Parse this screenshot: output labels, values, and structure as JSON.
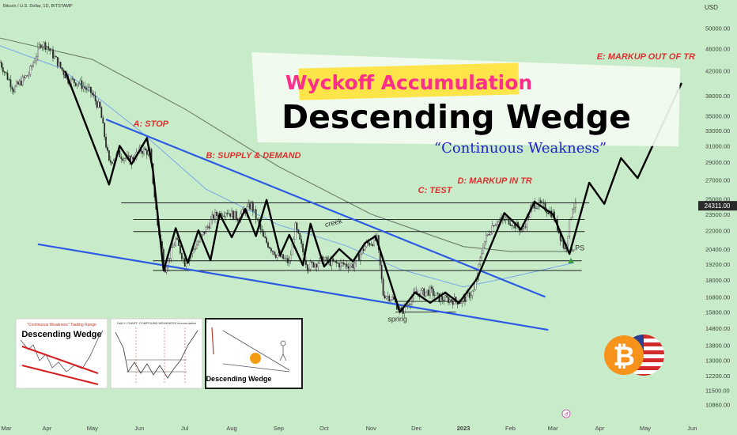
{
  "header": {
    "symbol_line": "Bitcoin / U.S. Dollar, 1D, BITSTAMP",
    "currency": "USD"
  },
  "colors": {
    "background": "#c8ecc9",
    "candle": "#2a2a2a",
    "zigzag": "#000000",
    "trendline": "#2d5be3",
    "ma_slow": "#6d7d6d",
    "ma_fast": "#7aa7e6",
    "phase_label": "#e03030",
    "price_badge": "#2b2b2b",
    "highlight_pink": "#ff2e8a",
    "highlight_yellow": "#ffe44a",
    "subtitle_blue": "#2222cc",
    "lps_marker": "#3aa048",
    "bitcoin": "#f7931a"
  },
  "titles": {
    "highlight": "Wyckoff Accumulation",
    "main": "Descending Wedge",
    "subtitle": "“Continuous Weakness”"
  },
  "annotations": [
    {
      "name": "label-a-stop",
      "text": "A: STOP",
      "x": "2022-05-28",
      "y": 33500,
      "style": "phase"
    },
    {
      "name": "label-b-supply-demand",
      "text": "B: SUPPLY & DEMAND",
      "x": "2022-07-15",
      "y": 29500,
      "style": "phase"
    },
    {
      "name": "label-c-test",
      "text": "C: TEST",
      "x": "2022-12-02",
      "y": 25600,
      "style": "phase"
    },
    {
      "name": "label-d-markup-in-tr",
      "text": "D: MARKUP IN TR",
      "x": "2022-12-28",
      "y": 26600,
      "style": "phase"
    },
    {
      "name": "label-e-markup-out-of-tr",
      "text": "E: MARKUP OUT OF TR",
      "x": "2023-03-30",
      "y": 44000,
      "style": "phase"
    },
    {
      "name": "label-creek",
      "text": "creek",
      "x": "2022-10-02",
      "y": 22300,
      "style": "note"
    },
    {
      "name": "label-spring",
      "text": "spring",
      "x": "2022-11-12",
      "y": 15200,
      "style": "note"
    },
    {
      "name": "label-lps",
      "text": "LPS",
      "x": "2023-03-13",
      "y": 20300,
      "style": "note"
    }
  ],
  "badges": {
    "last_price": "24311.00"
  },
  "thumbnails": [
    {
      "name": "thumbnail-continuous-weakness",
      "caption": "\"Continuous Weakness\" Trading Range",
      "title": "Descending Wedge"
    },
    {
      "name": "thumbnail-wyckoff-schematic",
      "caption": "DAILY CHART: COMPOUND WEAKNESS Accumulation",
      "title": ""
    },
    {
      "name": "thumbnail-wedge-illustration",
      "caption": "",
      "title": "Descending Wedge"
    }
  ],
  "chart_data": {
    "type": "line",
    "title": "Bitcoin / U.S. Dollar, 1D, BITSTAMP",
    "xlabel": "",
    "ylabel": "USD",
    "yscale": "log",
    "xlim": [
      "2022-03-01",
      "2023-06-05"
    ],
    "ylim": [
      10200,
      56000
    ],
    "grid": false,
    "x_ticks": [
      {
        "date": "2022-03-01",
        "label": "Mar"
      },
      {
        "date": "2022-04-01",
        "label": "Apr"
      },
      {
        "date": "2022-05-01",
        "label": "May"
      },
      {
        "date": "2022-06-01",
        "label": "Jun"
      },
      {
        "date": "2022-07-01",
        "label": "Jul"
      },
      {
        "date": "2022-08-01",
        "label": "Aug"
      },
      {
        "date": "2022-09-01",
        "label": "Sep"
      },
      {
        "date": "2022-10-01",
        "label": "Oct"
      },
      {
        "date": "2022-11-01",
        "label": "Nov"
      },
      {
        "date": "2022-12-01",
        "label": "Dec"
      },
      {
        "date": "2023-01-01",
        "label": "2023"
      },
      {
        "date": "2023-02-01",
        "label": "Feb"
      },
      {
        "date": "2023-03-01",
        "label": "Mar"
      },
      {
        "date": "2023-04-01",
        "label": "Apr"
      },
      {
        "date": "2023-05-01",
        "label": "May"
      },
      {
        "date": "2023-06-01",
        "label": "Jun"
      }
    ],
    "y_ticks": [
      {
        "value": 50000,
        "label": "50000.00"
      },
      {
        "value": 46000,
        "label": "46000.00"
      },
      {
        "value": 42000,
        "label": "42000.00"
      },
      {
        "value": 38000,
        "label": "38000.00"
      },
      {
        "value": 35000,
        "label": "35000.00"
      },
      {
        "value": 33000,
        "label": "33000.00"
      },
      {
        "value": 31000,
        "label": "31000.00"
      },
      {
        "value": 29000,
        "label": "29000.00"
      },
      {
        "value": 27000,
        "label": "27000.00"
      },
      {
        "value": 25000,
        "label": "25000.00"
      },
      {
        "value": 23500,
        "label": "23500.00"
      },
      {
        "value": 22000,
        "label": "22000.00"
      },
      {
        "value": 20400,
        "label": "20400.00"
      },
      {
        "value": 19200,
        "label": "19200.00"
      },
      {
        "value": 18000,
        "label": "18000.00"
      },
      {
        "value": 16800,
        "label": "16800.00"
      },
      {
        "value": 15800,
        "label": "15800.00"
      },
      {
        "value": 14800,
        "label": "14800.00"
      },
      {
        "value": 13800,
        "label": "13800.00"
      },
      {
        "value": 13000,
        "label": "13000.00"
      },
      {
        "value": 12200,
        "label": "12200.00"
      },
      {
        "value": 11500,
        "label": "11500.00"
      },
      {
        "value": 10860,
        "label": "10860.00"
      }
    ],
    "price_anchors": [
      [
        "2022-03-01",
        43500
      ],
      [
        "2022-03-10",
        39000
      ],
      [
        "2022-03-20",
        41500
      ],
      [
        "2022-03-28",
        47000
      ],
      [
        "2022-04-01",
        46500
      ],
      [
        "2022-04-08",
        43500
      ],
      [
        "2022-04-15",
        40500
      ],
      [
        "2022-04-22",
        40000
      ],
      [
        "2022-04-30",
        38500
      ],
      [
        "2022-05-06",
        36000
      ],
      [
        "2022-05-12",
        28900
      ],
      [
        "2022-05-18",
        30000
      ],
      [
        "2022-05-26",
        29200
      ],
      [
        "2022-06-02",
        30500
      ],
      [
        "2022-06-08",
        30200
      ],
      [
        "2022-06-13",
        22500
      ],
      [
        "2022-06-18",
        18900
      ],
      [
        "2022-06-25",
        21200
      ],
      [
        "2022-07-01",
        19300
      ],
      [
        "2022-07-10",
        21000
      ],
      [
        "2022-07-20",
        23300
      ],
      [
        "2022-07-28",
        23800
      ],
      [
        "2022-08-05",
        23200
      ],
      [
        "2022-08-14",
        24400
      ],
      [
        "2022-08-22",
        21300
      ],
      [
        "2022-08-30",
        20000
      ],
      [
        "2022-09-08",
        19300
      ],
      [
        "2022-09-12",
        22300
      ],
      [
        "2022-09-20",
        19000
      ],
      [
        "2022-09-30",
        19500
      ],
      [
        "2022-10-10",
        19200
      ],
      [
        "2022-10-20",
        19100
      ],
      [
        "2022-10-29",
        20800
      ],
      [
        "2022-11-05",
        21200
      ],
      [
        "2022-11-09",
        17000
      ],
      [
        "2022-11-15",
        16700
      ],
      [
        "2022-11-21",
        15800
      ],
      [
        "2022-11-30",
        17000
      ],
      [
        "2022-12-10",
        17200
      ],
      [
        "2022-12-16",
        16700
      ],
      [
        "2022-12-30",
        16500
      ],
      [
        "2023-01-08",
        17200
      ],
      [
        "2023-01-14",
        20800
      ],
      [
        "2023-01-21",
        22700
      ],
      [
        "2023-01-30",
        23000
      ],
      [
        "2023-02-09",
        22000
      ],
      [
        "2023-02-16",
        24500
      ],
      [
        "2023-02-21",
        24400
      ],
      [
        "2023-03-01",
        23500
      ],
      [
        "2023-03-09",
        20300
      ],
      [
        "2023-03-14",
        24300
      ],
      [
        "2023-03-16",
        24311
      ]
    ],
    "series": [
      {
        "style": "zigzag",
        "points": [
          [
            "2022-04-13",
            42000
          ],
          [
            "2022-05-12",
            26500
          ],
          [
            "2022-05-19",
            31000
          ],
          [
            "2022-05-27",
            28800
          ],
          [
            "2022-06-06",
            32000
          ],
          [
            "2022-06-10",
            28000
          ],
          [
            "2022-06-17",
            18700
          ],
          [
            "2022-06-25",
            22200
          ],
          [
            "2022-07-03",
            19300
          ],
          [
            "2022-07-10",
            22000
          ],
          [
            "2022-07-18",
            19500
          ],
          [
            "2022-07-24",
            23500
          ],
          [
            "2022-08-01",
            21400
          ],
          [
            "2022-08-10",
            24000
          ],
          [
            "2022-08-17",
            21500
          ],
          [
            "2022-08-24",
            24900
          ],
          [
            "2022-09-02",
            19900
          ],
          [
            "2022-09-08",
            21600
          ],
          [
            "2022-09-17",
            19100
          ],
          [
            "2022-09-22",
            22600
          ],
          [
            "2022-10-01",
            19000
          ],
          [
            "2022-10-11",
            20400
          ],
          [
            "2022-10-20",
            19400
          ],
          [
            "2022-10-28",
            20900
          ],
          [
            "2022-11-04",
            21500
          ],
          [
            "2022-11-08",
            19900
          ],
          [
            "2022-11-20",
            15800
          ],
          [
            "2022-11-30",
            17100
          ],
          [
            "2022-12-10",
            16400
          ],
          [
            "2022-12-20",
            17100
          ],
          [
            "2022-12-29",
            16400
          ],
          [
            "2023-01-10",
            18100
          ],
          [
            "2023-01-28",
            23600
          ],
          [
            "2023-02-08",
            22100
          ],
          [
            "2023-02-17",
            24700
          ],
          [
            "2023-03-01",
            23500
          ],
          [
            "2023-03-12",
            20000
          ],
          [
            "2023-03-25",
            26700
          ],
          [
            "2023-04-04",
            24500
          ],
          [
            "2023-04-15",
            29500
          ],
          [
            "2023-04-26",
            27200
          ],
          [
            "2023-05-25",
            40000
          ]
        ]
      },
      {
        "style": "trendline",
        "points": [
          [
            "2022-05-10",
            34500
          ],
          [
            "2023-02-24",
            16800
          ]
        ]
      },
      {
        "style": "trendline",
        "points": [
          [
            "2022-03-26",
            20800
          ],
          [
            "2023-02-26",
            14700
          ]
        ]
      },
      {
        "style": "ma_slow",
        "points": [
          [
            "2022-03-01",
            48000
          ],
          [
            "2022-05-01",
            44000
          ],
          [
            "2022-07-01",
            36000
          ],
          [
            "2022-09-01",
            28500
          ],
          [
            "2022-11-01",
            23500
          ],
          [
            "2023-01-01",
            20600
          ],
          [
            "2023-02-01",
            20200
          ],
          [
            "2023-03-15",
            20200
          ]
        ]
      },
      {
        "style": "ma_fast",
        "points": [
          [
            "2022-03-01",
            46500
          ],
          [
            "2022-04-10",
            42500
          ],
          [
            "2022-06-01",
            33000
          ],
          [
            "2022-07-15",
            26000
          ],
          [
            "2022-09-01",
            22500
          ],
          [
            "2022-10-15",
            20700
          ],
          [
            "2022-11-20",
            18800
          ],
          [
            "2023-01-01",
            17500
          ],
          [
            "2023-02-01",
            18200
          ],
          [
            "2023-03-15",
            19300
          ]
        ]
      }
    ],
    "levels": [
      {
        "name": "level-creek-top",
        "value": 24600,
        "from": "2022-05-20",
        "to": "2023-03-25"
      },
      {
        "name": "level-upper-1",
        "value": 23000,
        "from": "2022-05-28",
        "to": "2023-03-22"
      },
      {
        "name": "level-upper-2",
        "value": 21900,
        "from": "2022-05-28",
        "to": "2023-03-22"
      },
      {
        "name": "level-lower-1",
        "value": 19450,
        "from": "2022-06-10",
        "to": "2023-03-20"
      },
      {
        "name": "level-lower-2",
        "value": 18700,
        "from": "2022-06-10",
        "to": "2023-03-20"
      },
      {
        "name": "level-spring-1",
        "value": 16500,
        "from": "2022-11-17",
        "to": "2023-01-03"
      },
      {
        "name": "level-spring-2",
        "value": 15800,
        "from": "2022-11-17",
        "to": "2022-12-27"
      }
    ],
    "lps_marker": {
      "x": "2023-03-13",
      "y": 19500
    }
  }
}
